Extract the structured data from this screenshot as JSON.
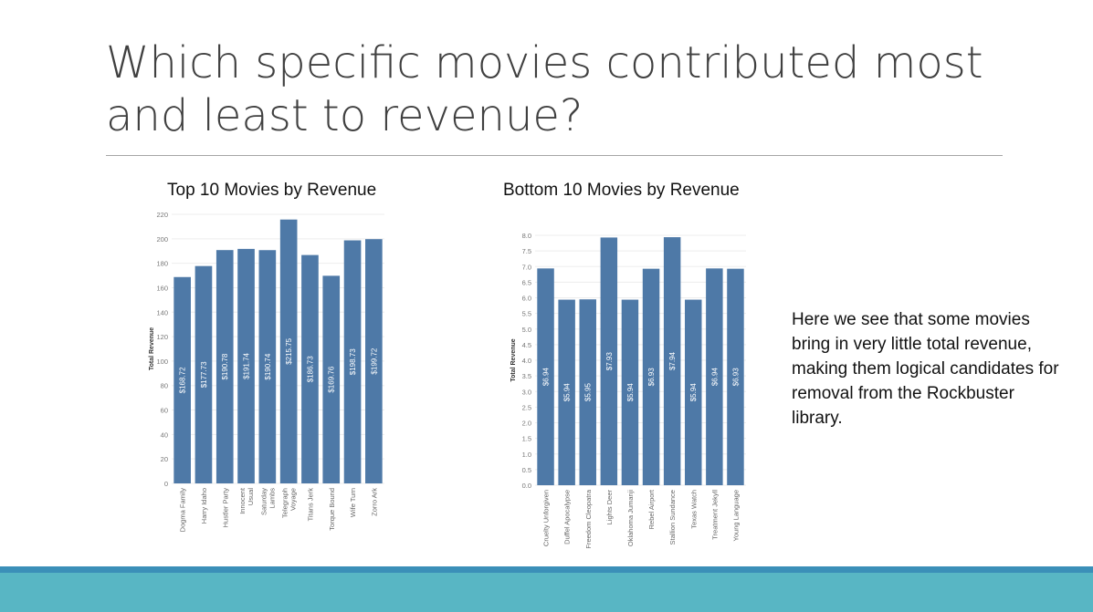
{
  "slide": {
    "title": "Which specific movies contributed most and least to revenue?",
    "note": "Here we see that some movies bring in very little total revenue, making them logical candidates for removal from the Rockbuster library."
  },
  "colors": {
    "bar": "#4e79a7",
    "band_dark": "#3b8fb8",
    "band_light": "#58b6c4"
  },
  "chart_data": [
    {
      "type": "bar",
      "title": "Top 10 Movies by Revenue",
      "xlabel": "",
      "ylabel": "Total Revenue",
      "ylim": [
        0,
        220
      ],
      "yticks": [
        0,
        20,
        40,
        60,
        80,
        100,
        120,
        140,
        160,
        180,
        200,
        220
      ],
      "grid": true,
      "categories": [
        "Dogma Family",
        "Harry Idaho",
        "Hustler Party",
        "Innocent Usual",
        "Saturday Lambs",
        "Telegraph Voyage",
        "Titans Jerk",
        "Torque Bound",
        "Wife Turn",
        "Zorro Ark"
      ],
      "category_lines": [
        [
          "Dogma Family"
        ],
        [
          "Harry Idaho"
        ],
        [
          "Hustler Party"
        ],
        [
          "Innocent",
          "Usual"
        ],
        [
          "Saturday",
          "Lambs"
        ],
        [
          "Telegraph",
          "Voyage"
        ],
        [
          "Titans Jerk"
        ],
        [
          "Torque Bound"
        ],
        [
          "Wife Turn"
        ],
        [
          "Zorro Ark"
        ]
      ],
      "values": [
        168.72,
        177.73,
        190.78,
        191.74,
        190.74,
        215.75,
        186.73,
        169.76,
        198.73,
        199.72
      ],
      "labels": [
        "$168.72",
        "$177.73",
        "$190.78",
        "$191.74",
        "$190.74",
        "$215.75",
        "$186.73",
        "$169.76",
        "$198.73",
        "$199.72"
      ]
    },
    {
      "type": "bar",
      "title": "Bottom 10 Movies by Revenue",
      "xlabel": "",
      "ylabel": "Total Revenue",
      "ylim": [
        0,
        8
      ],
      "yticks": [
        "0.0",
        "0.5",
        "1.0",
        "1.5",
        "2.0",
        "2.5",
        "3.0",
        "3.5",
        "4.0",
        "4.5",
        "5.0",
        "5.5",
        "6.0",
        "6.5",
        "7.0",
        "7.5",
        "8.0"
      ],
      "grid": true,
      "categories": [
        "Cruelty Unforgiven",
        "Duffel Apocalypse",
        "Freedom Cleopatra",
        "Lights Deer",
        "Oklahoma Jumanji",
        "Rebel Airport",
        "Stallion Sundance",
        "Texas Watch",
        "Treatment Jekyll",
        "Young Language"
      ],
      "category_lines": [
        [
          "Cruelty Unforgiven"
        ],
        [
          "Duffel Apocalypse"
        ],
        [
          "Freedom Cleopatra"
        ],
        [
          "Lights Deer"
        ],
        [
          "Oklahoma Jumanji"
        ],
        [
          "Rebel Airport"
        ],
        [
          "Stallion Sundance"
        ],
        [
          "Texas Watch"
        ],
        [
          "Treatment Jekyll"
        ],
        [
          "Young Language"
        ]
      ],
      "values": [
        6.94,
        5.94,
        5.95,
        7.93,
        5.94,
        6.93,
        7.94,
        5.94,
        6.94,
        6.93
      ],
      "labels": [
        "$6.94",
        "$5.94",
        "$5.95",
        "$7.93",
        "$5.94",
        "$6.93",
        "$7.94",
        "$5.94",
        "$6.94",
        "$6.93"
      ]
    }
  ]
}
